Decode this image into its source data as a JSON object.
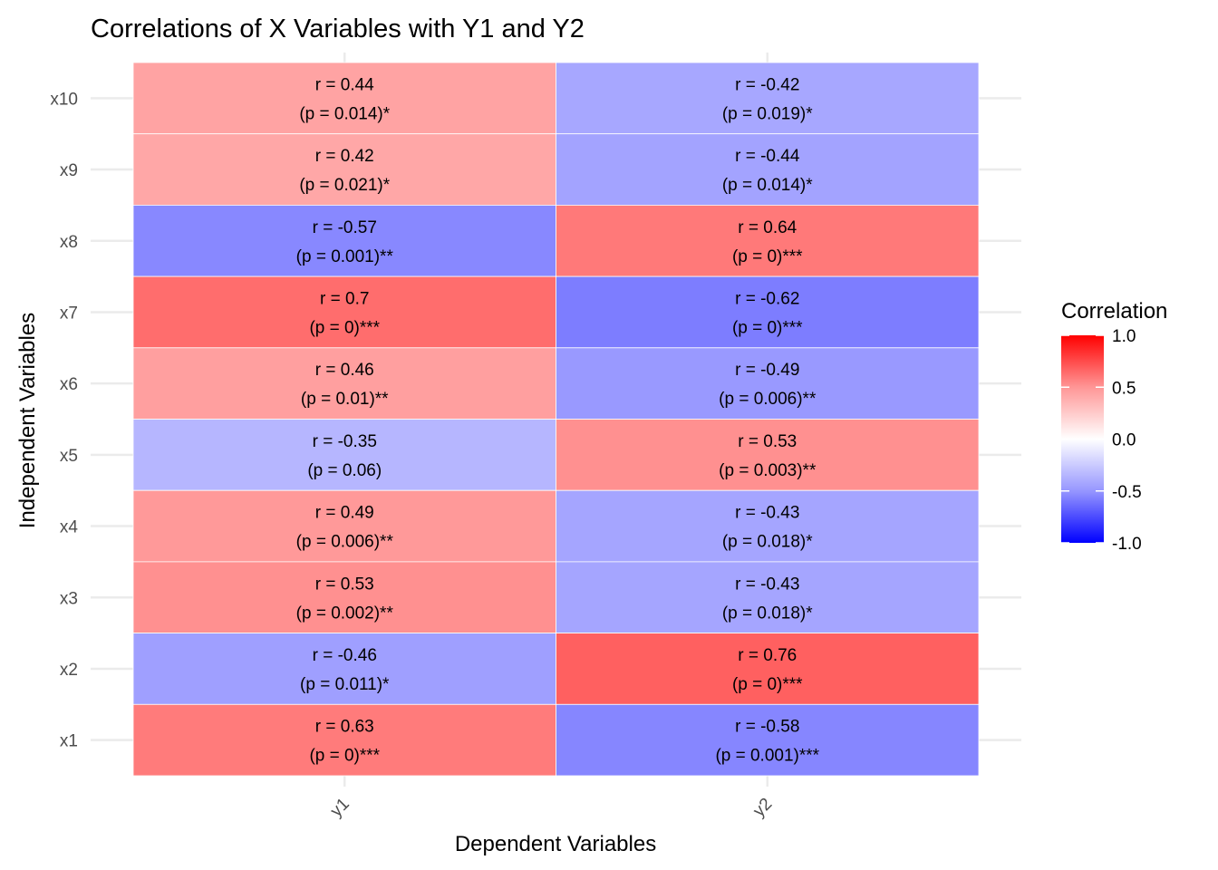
{
  "chart_data": {
    "type": "heatmap",
    "title": "Correlations of X Variables with Y1 and Y2",
    "xlabel": "Dependent Variables",
    "ylabel": "Independent Variables",
    "x_categories": [
      "y1",
      "y2"
    ],
    "y_categories": [
      "x1",
      "x2",
      "x3",
      "x4",
      "x5",
      "x6",
      "x7",
      "x8",
      "x9",
      "x10"
    ],
    "cells": [
      {
        "x": "y1",
        "y": "x10",
        "r": 0.44,
        "r_text": "r = 0.44",
        "p_text": "(p = 0.014)*"
      },
      {
        "x": "y2",
        "y": "x10",
        "r": -0.42,
        "r_text": "r = -0.42",
        "p_text": "(p = 0.019)*"
      },
      {
        "x": "y1",
        "y": "x9",
        "r": 0.42,
        "r_text": "r = 0.42",
        "p_text": "(p = 0.021)*"
      },
      {
        "x": "y2",
        "y": "x9",
        "r": -0.44,
        "r_text": "r = -0.44",
        "p_text": "(p = 0.014)*"
      },
      {
        "x": "y1",
        "y": "x8",
        "r": -0.57,
        "r_text": "r = -0.57",
        "p_text": "(p = 0.001)**"
      },
      {
        "x": "y2",
        "y": "x8",
        "r": 0.64,
        "r_text": "r = 0.64",
        "p_text": "(p = 0)***"
      },
      {
        "x": "y1",
        "y": "x7",
        "r": 0.7,
        "r_text": "r = 0.7",
        "p_text": "(p = 0)***"
      },
      {
        "x": "y2",
        "y": "x7",
        "r": -0.62,
        "r_text": "r = -0.62",
        "p_text": "(p = 0)***"
      },
      {
        "x": "y1",
        "y": "x6",
        "r": 0.46,
        "r_text": "r = 0.46",
        "p_text": "(p = 0.01)**"
      },
      {
        "x": "y2",
        "y": "x6",
        "r": -0.49,
        "r_text": "r = -0.49",
        "p_text": "(p = 0.006)**"
      },
      {
        "x": "y1",
        "y": "x5",
        "r": -0.35,
        "r_text": "r = -0.35",
        "p_text": "(p = 0.06)"
      },
      {
        "x": "y2",
        "y": "x5",
        "r": 0.53,
        "r_text": "r = 0.53",
        "p_text": "(p = 0.003)**"
      },
      {
        "x": "y1",
        "y": "x4",
        "r": 0.49,
        "r_text": "r = 0.49",
        "p_text": "(p = 0.006)**"
      },
      {
        "x": "y2",
        "y": "x4",
        "r": -0.43,
        "r_text": "r = -0.43",
        "p_text": "(p = 0.018)*"
      },
      {
        "x": "y1",
        "y": "x3",
        "r": 0.53,
        "r_text": "r = 0.53",
        "p_text": "(p = 0.002)**"
      },
      {
        "x": "y2",
        "y": "x3",
        "r": -0.43,
        "r_text": "r = -0.43",
        "p_text": "(p = 0.018)*"
      },
      {
        "x": "y1",
        "y": "x2",
        "r": -0.46,
        "r_text": "r = -0.46",
        "p_text": "(p = 0.011)*"
      },
      {
        "x": "y2",
        "y": "x2",
        "r": 0.76,
        "r_text": "r = 0.76",
        "p_text": "(p = 0)***"
      },
      {
        "x": "y1",
        "y": "x1",
        "r": 0.63,
        "r_text": "r = 0.63",
        "p_text": "(p = 0)***"
      },
      {
        "x": "y2",
        "y": "x1",
        "r": -0.58,
        "r_text": "r = -0.58",
        "p_text": "(p = 0.001)***"
      }
    ],
    "legend": {
      "title": "Correlation",
      "position": "right",
      "range": [
        -1,
        1
      ],
      "breaks": [
        1.0,
        0.5,
        0.0,
        -0.5,
        -1.0
      ],
      "break_labels": [
        "1.0",
        "0.5",
        "0.0",
        "-0.5",
        "-1.0"
      ],
      "colors": {
        "low": "#0000FF",
        "mid": "#FFFFFF",
        "high": "#FF0000"
      }
    },
    "grid": true
  }
}
